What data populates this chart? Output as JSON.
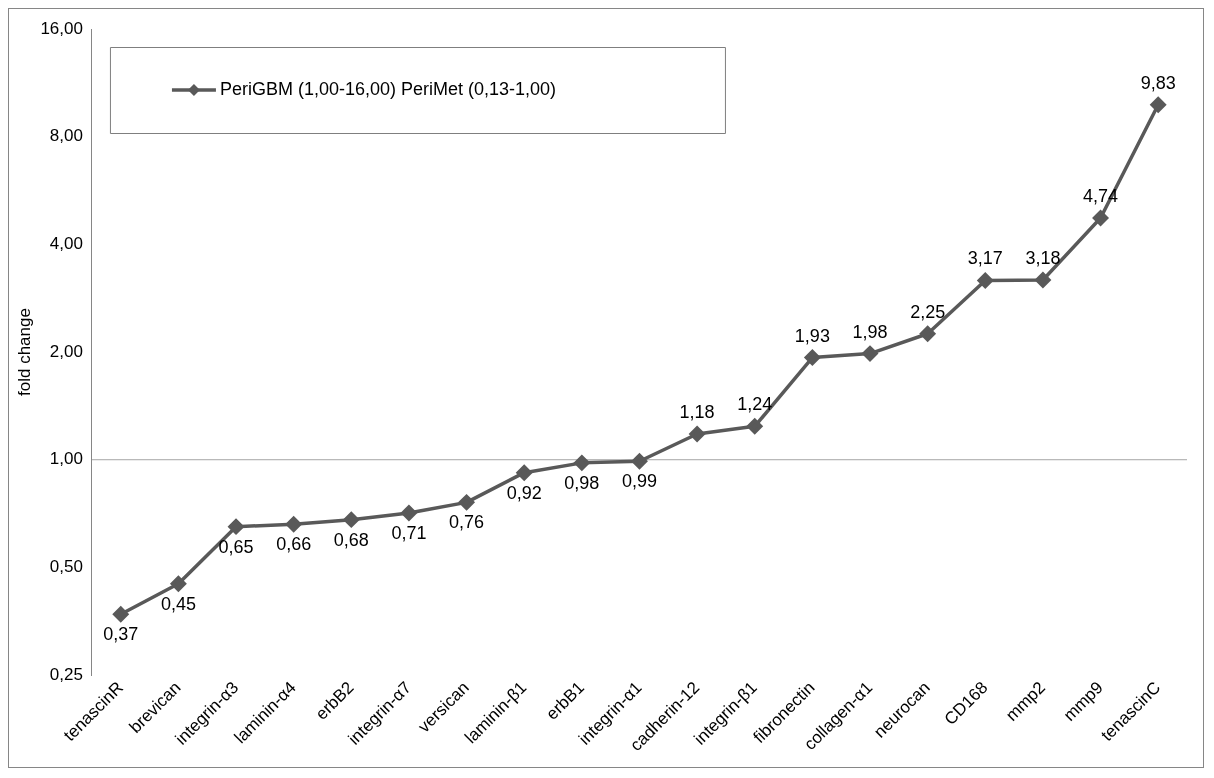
{
  "chart_data": {
    "type": "line",
    "ylabel": "fold change",
    "categories": [
      "tenascinR",
      "brevican",
      "integrin-α3",
      "laminin-α4",
      "erbB2",
      "integrin-α7",
      "versican",
      "laminin-β1",
      "erbB1",
      "integrin-α1",
      "cadherin-12",
      "integrin-β1",
      "fibronectin",
      "collagen-α1",
      "neurocan",
      "CD168",
      "mmp2",
      "mmp9",
      "tenascinC"
    ],
    "series": [
      {
        "name": "PeriGBM (1,00-16,00) PeriMet (0,13-1,00)",
        "color": "#595959",
        "values": [
          0.37,
          0.45,
          0.65,
          0.66,
          0.68,
          0.71,
          0.76,
          0.92,
          0.98,
          0.99,
          1.18,
          1.24,
          1.93,
          1.98,
          2.25,
          3.17,
          3.18,
          4.74,
          9.83
        ],
        "value_labels": [
          "0,37",
          "0,45",
          "0,65",
          "0,66",
          "0,68",
          "0,71",
          "0,76",
          "0,92",
          "0,98",
          "0,99",
          "1,18",
          "1,24",
          "1,93",
          "1,98",
          "2,25",
          "3,17",
          "3,18",
          "4,74",
          "9,83"
        ]
      }
    ],
    "log": "y",
    "ylim": [
      0.25,
      16
    ],
    "yticks": [
      {
        "value": 0.25,
        "label": "0,25"
      },
      {
        "value": 0.5,
        "label": "0,50"
      },
      {
        "value": 1,
        "label": "1,00"
      },
      {
        "value": 2,
        "label": "2,00"
      },
      {
        "value": 4,
        "label": "4,00"
      },
      {
        "value": 8,
        "label": "8,00"
      },
      {
        "value": 16,
        "label": "16,00"
      }
    ],
    "ref_lines": [
      {
        "axis": "y",
        "value": 1,
        "color": "#a6a6a6"
      }
    ],
    "grid": false,
    "legend": "top left",
    "marker": "diamond",
    "line_style": "solid"
  }
}
